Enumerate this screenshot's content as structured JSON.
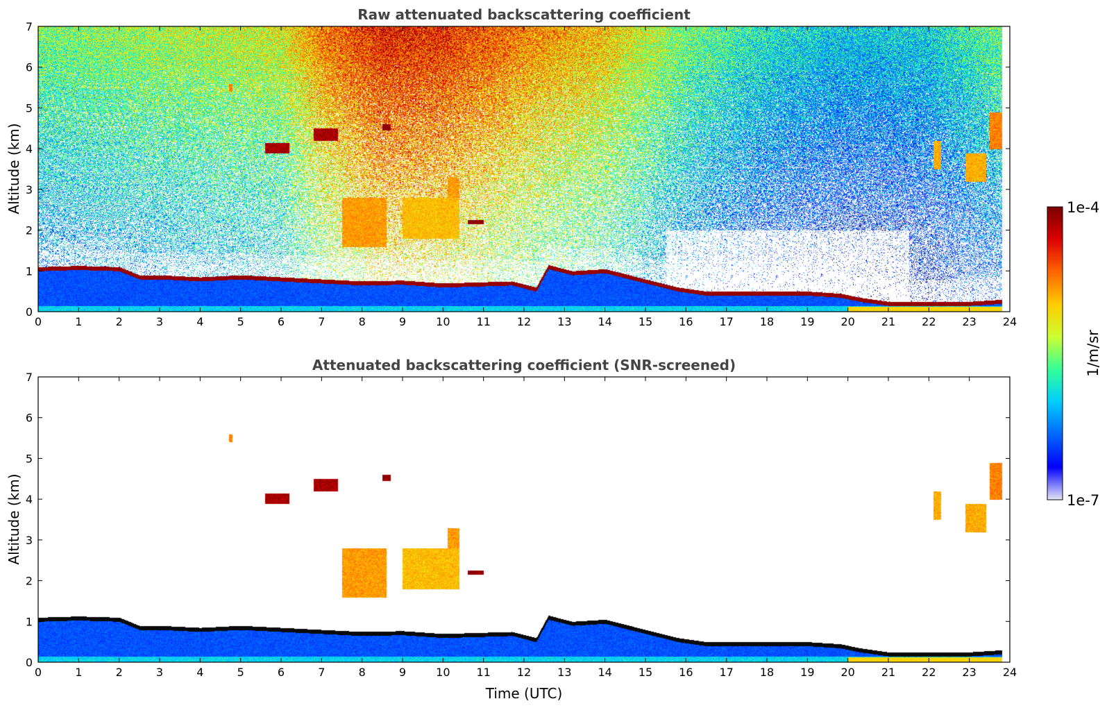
{
  "chart_data": [
    {
      "type": "heatmap",
      "title": "Raw attenuated backscattering coefficient",
      "xlabel": "",
      "ylabel": "Altitude (km)",
      "xlim": [
        0,
        24
      ],
      "ylim": [
        0,
        7
      ],
      "xticks": [
        "0",
        "1",
        "2",
        "3",
        "4",
        "5",
        "6",
        "7",
        "8",
        "9",
        "10",
        "11",
        "12",
        "13",
        "14",
        "15",
        "16",
        "17",
        "18",
        "19",
        "20",
        "21",
        "22",
        "23",
        "24"
      ],
      "yticks": [
        "0",
        "1",
        "2",
        "3",
        "4",
        "5",
        "6",
        "7"
      ],
      "noise_level_by_hour": [
        {
          "t": 0,
          "level": 0.45
        },
        {
          "t": 3,
          "level": 0.5
        },
        {
          "t": 6,
          "level": 0.55
        },
        {
          "t": 7,
          "level": 0.7
        },
        {
          "t": 8.5,
          "level": 0.82
        },
        {
          "t": 10,
          "level": 0.8
        },
        {
          "t": 12,
          "level": 0.7
        },
        {
          "t": 14,
          "level": 0.62
        },
        {
          "t": 16,
          "level": 0.45
        },
        {
          "t": 18,
          "level": 0.35
        },
        {
          "t": 20,
          "level": 0.3
        },
        {
          "t": 22,
          "level": 0.32
        },
        {
          "t": 24,
          "level": 0.45
        }
      ],
      "boundary_layer_top_km": [
        {
          "t": 0,
          "alt": 1.05
        },
        {
          "t": 1,
          "alt": 1.08
        },
        {
          "t": 2,
          "alt": 1.05
        },
        {
          "t": 2.5,
          "alt": 0.85
        },
        {
          "t": 3,
          "alt": 0.85
        },
        {
          "t": 4,
          "alt": 0.8
        },
        {
          "t": 5,
          "alt": 0.85
        },
        {
          "t": 6,
          "alt": 0.8
        },
        {
          "t": 7,
          "alt": 0.75
        },
        {
          "t": 8,
          "alt": 0.7
        },
        {
          "t": 9,
          "alt": 0.72
        },
        {
          "t": 10,
          "alt": 0.65
        },
        {
          "t": 11.7,
          "alt": 0.7
        },
        {
          "t": 12.3,
          "alt": 0.55
        },
        {
          "t": 12.6,
          "alt": 1.1
        },
        {
          "t": 13.2,
          "alt": 0.95
        },
        {
          "t": 14,
          "alt": 1.0
        },
        {
          "t": 15,
          "alt": 0.75
        },
        {
          "t": 15.8,
          "alt": 0.55
        },
        {
          "t": 16.5,
          "alt": 0.45
        },
        {
          "t": 18,
          "alt": 0.45
        },
        {
          "t": 19,
          "alt": 0.45
        },
        {
          "t": 19.8,
          "alt": 0.4
        },
        {
          "t": 20.3,
          "alt": 0.3
        },
        {
          "t": 21,
          "alt": 0.2
        },
        {
          "t": 22,
          "alt": 0.2
        },
        {
          "t": 23,
          "alt": 0.2
        },
        {
          "t": 23.8,
          "alt": 0.25
        }
      ],
      "aerosol_features": [
        {
          "t0": 4.7,
          "t1": 4.8,
          "a0": 5.4,
          "a1": 5.6,
          "level": 0.75
        },
        {
          "t0": 5.6,
          "t1": 6.2,
          "a0": 3.9,
          "a1": 4.15,
          "level": 0.95
        },
        {
          "t0": 6.8,
          "t1": 7.4,
          "a0": 4.2,
          "a1": 4.5,
          "level": 0.95
        },
        {
          "t0": 8.5,
          "t1": 8.7,
          "a0": 4.45,
          "a1": 4.6,
          "level": 0.98
        },
        {
          "t0": 7.5,
          "t1": 8.6,
          "a0": 1.6,
          "a1": 2.8,
          "level": 0.72
        },
        {
          "t0": 9.0,
          "t1": 10.4,
          "a0": 1.8,
          "a1": 2.8,
          "level": 0.68
        },
        {
          "t0": 10.1,
          "t1": 10.4,
          "a0": 2.8,
          "a1": 3.3,
          "level": 0.72
        },
        {
          "t0": 10.6,
          "t1": 11.0,
          "a0": 2.15,
          "a1": 2.25,
          "level": 0.98
        },
        {
          "t0": 22.1,
          "t1": 22.3,
          "a0": 3.5,
          "a1": 4.2,
          "level": 0.7
        },
        {
          "t0": 22.9,
          "t1": 23.4,
          "a0": 3.2,
          "a1": 3.9,
          "level": 0.7
        },
        {
          "t0": 23.5,
          "t1": 23.8,
          "a0": 4.0,
          "a1": 4.9,
          "level": 0.75
        }
      ]
    },
    {
      "type": "heatmap",
      "title": "Attenuated backscattering coefficient (SNR-screened)",
      "xlabel": "Time (UTC)",
      "ylabel": "Altitude (km)",
      "xlim": [
        0,
        24
      ],
      "ylim": [
        0,
        7
      ],
      "xticks": [
        "0",
        "1",
        "2",
        "3",
        "4",
        "5",
        "6",
        "7",
        "8",
        "9",
        "10",
        "11",
        "12",
        "13",
        "14",
        "15",
        "16",
        "17",
        "18",
        "19",
        "20",
        "21",
        "22",
        "23",
        "24"
      ],
      "yticks": [
        "0",
        "1",
        "2",
        "3",
        "4",
        "5",
        "6",
        "7"
      ],
      "screened": true
    }
  ],
  "colorbar": {
    "label": "1/m/sr",
    "max_label": "1e-4",
    "min_label": "1e-7",
    "scale": "log",
    "colormap": [
      "#e6e6f5",
      "#0000ff",
      "#0066ff",
      "#00ccff",
      "#33ff99",
      "#ccff33",
      "#ffcc00",
      "#ff6600",
      "#dd0000",
      "#7a0000"
    ]
  }
}
